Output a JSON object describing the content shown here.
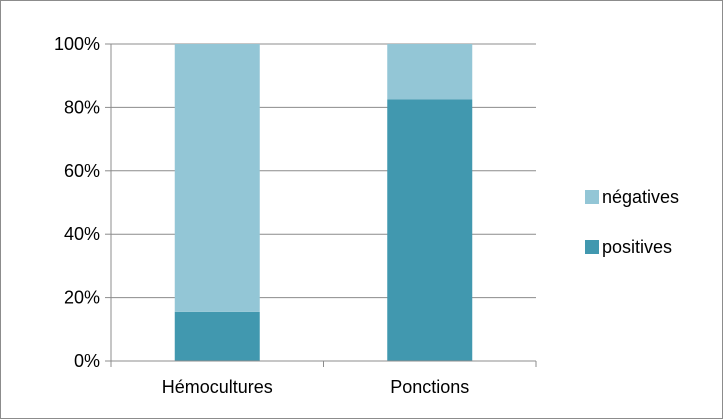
{
  "chart_data": {
    "type": "bar",
    "stacked": true,
    "percent_stacked": true,
    "categories": [
      "Hémocultures",
      "Ponctions"
    ],
    "series": [
      {
        "name": "positives",
        "values": [
          15.5,
          82.5
        ],
        "color": "#4198af"
      },
      {
        "name": "négatives",
        "values": [
          84.5,
          17.5
        ],
        "color": "#93c6d6"
      }
    ],
    "y_ticks": [
      "0%",
      "20%",
      "40%",
      "60%",
      "80%",
      "100%"
    ],
    "ylim": [
      0,
      100
    ],
    "grid": true,
    "legend_position": "right",
    "legend": [
      "négatives",
      "positives"
    ]
  }
}
